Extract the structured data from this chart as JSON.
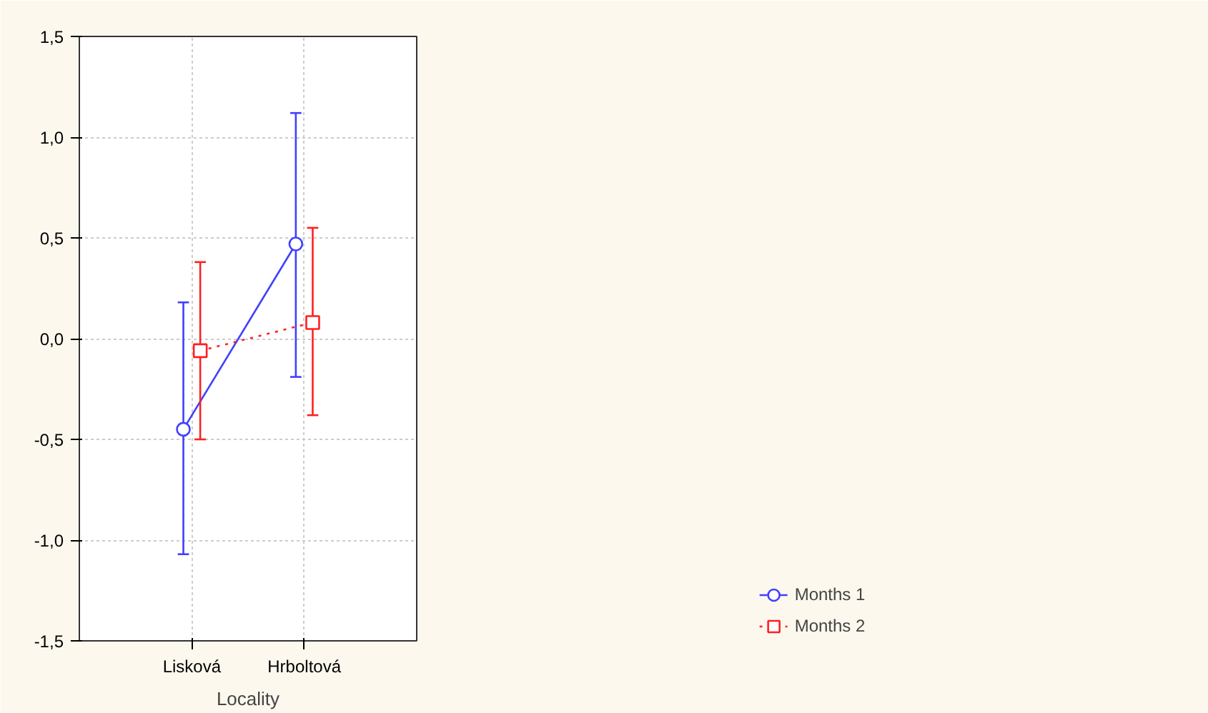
{
  "chart_data": {
    "type": "line",
    "xlabel": "Locality",
    "categories": [
      "Lisková",
      "Hrboltová"
    ],
    "series": [
      {
        "name": "Months 1",
        "color": "#4040ff",
        "values": [
          -0.45,
          0.47
        ],
        "errors": [
          [
            -1.07,
            0.18
          ],
          [
            -0.19,
            1.12
          ]
        ],
        "marker": "circle",
        "line_style": "solid"
      },
      {
        "name": "Months 2",
        "color": "#ff2020",
        "values": [
          -0.06,
          0.08
        ],
        "errors": [
          [
            -0.5,
            0.38
          ],
          [
            -0.38,
            0.55
          ]
        ],
        "marker": "square",
        "line_style": "dotted"
      }
    ],
    "ylim": [
      -1.5,
      1.5
    ],
    "yticks": [
      {
        "value": -1.5,
        "label": "-1,5"
      },
      {
        "value": -1.0,
        "label": "-1,0"
      },
      {
        "value": -0.5,
        "label": "-0,5"
      },
      {
        "value": 0.0,
        "label": "0,0"
      },
      {
        "value": 0.5,
        "label": "0,5"
      },
      {
        "value": 1.0,
        "label": "1,0"
      },
      {
        "value": 1.5,
        "label": "1,5"
      }
    ],
    "grid": true,
    "legend": "bottom right"
  }
}
